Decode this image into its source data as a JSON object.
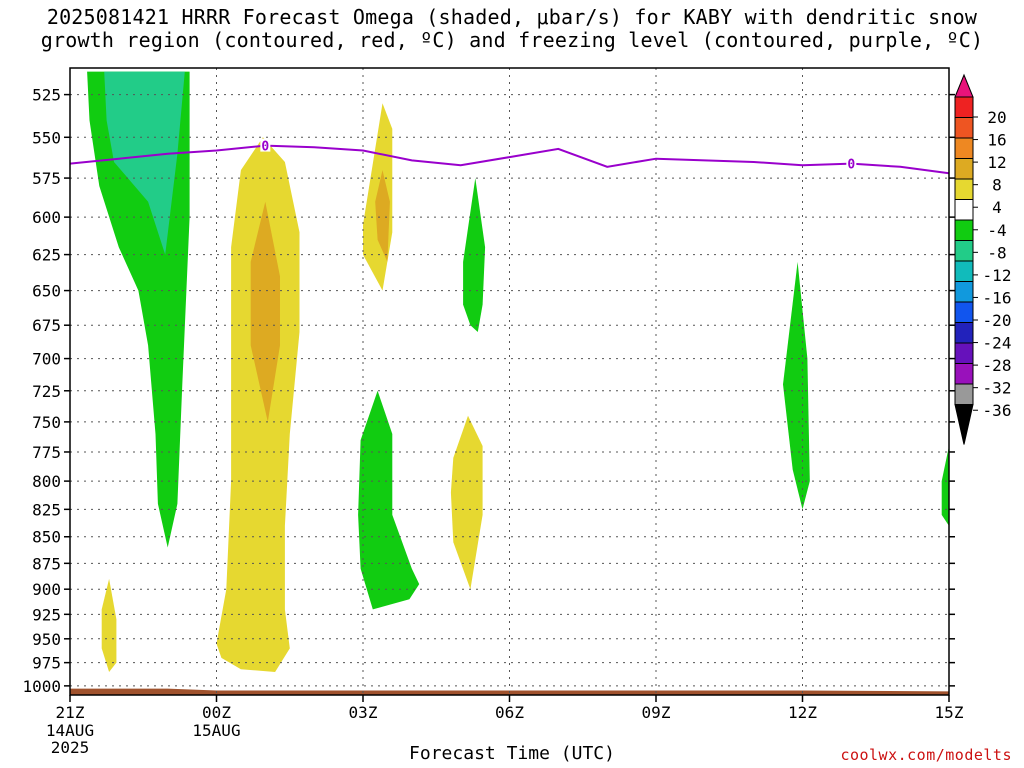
{
  "title": {
    "line1": "2025081421 HRRR Forecast Omega (shaded, μbar/s) for KABY with dendritic snow",
    "line2": "growth region (contoured, red, ºC) and freezing level (contoured, purple, ºC)"
  },
  "credit": "coolwx.com/modelts",
  "chart_data": {
    "type": "time-height",
    "xlabel": "Forecast Time (UTC)",
    "ylabel": "",
    "x_ticks": [
      {
        "label": "21Z",
        "sub": [
          "14AUG",
          "2025"
        ],
        "hour": 0
      },
      {
        "label": "00Z",
        "sub": [
          "15AUG"
        ],
        "hour": 3
      },
      {
        "label": "03Z",
        "sub": [],
        "hour": 6
      },
      {
        "label": "06Z",
        "sub": [],
        "hour": 9
      },
      {
        "label": "09Z",
        "sub": [],
        "hour": 12
      },
      {
        "label": "12Z",
        "sub": [],
        "hour": 15
      },
      {
        "label": "15Z",
        "sub": [],
        "hour": 18
      }
    ],
    "xlim_hours": [
      0,
      18
    ],
    "y_ticks": [
      525,
      550,
      575,
      600,
      625,
      650,
      675,
      700,
      725,
      750,
      775,
      800,
      825,
      850,
      875,
      900,
      925,
      950,
      975,
      1000
    ],
    "ylim_hpa": [
      1010,
      510
    ],
    "y_scale": "log-pressure",
    "grid": true,
    "colorbar": {
      "labels": [
        "20",
        "16",
        "12",
        "8",
        "4",
        "-4",
        "-8",
        "-12",
        "-16",
        "-20",
        "-24",
        "-28",
        "-32",
        "-36"
      ],
      "colors": [
        "#e8137a",
        "#ee2222",
        "#ee5522",
        "#ee8822",
        "#ddaa22",
        "#e6d830",
        "#ffffff",
        "#11cc11",
        "#22cc88",
        "#11bbbb",
        "#1199dd",
        "#1155ee",
        "#2222bb",
        "#6611bb",
        "#9911bb",
        "#999999",
        "#000000"
      ]
    },
    "freezing_level": {
      "label": "0",
      "color": "#9900cc",
      "points": [
        {
          "hour": 0.0,
          "hpa": 566
        },
        {
          "hour": 1.0,
          "hpa": 563
        },
        {
          "hour": 2.0,
          "hpa": 560
        },
        {
          "hour": 3.0,
          "hpa": 558
        },
        {
          "hour": 4.0,
          "hpa": 555
        },
        {
          "hour": 5.0,
          "hpa": 556
        },
        {
          "hour": 6.0,
          "hpa": 558
        },
        {
          "hour": 7.0,
          "hpa": 564
        },
        {
          "hour": 8.0,
          "hpa": 567
        },
        {
          "hour": 9.0,
          "hpa": 562
        },
        {
          "hour": 10.0,
          "hpa": 557
        },
        {
          "hour": 11.0,
          "hpa": 568
        },
        {
          "hour": 12.0,
          "hpa": 563
        },
        {
          "hour": 13.0,
          "hpa": 564
        },
        {
          "hour": 14.0,
          "hpa": 565
        },
        {
          "hour": 15.0,
          "hpa": 567
        },
        {
          "hour": 16.0,
          "hpa": 566
        },
        {
          "hour": 17.0,
          "hpa": 568
        },
        {
          "hour": 18.0,
          "hpa": 572
        }
      ],
      "label_hours": [
        4.0,
        16.0
      ]
    },
    "omega_regions": [
      {
        "name": "ascent-green-early",
        "value": -6,
        "color": "#11cc11",
        "points": [
          [
            0.35,
            512
          ],
          [
            2.45,
            512
          ],
          [
            2.45,
            600
          ],
          [
            2.3,
            720
          ],
          [
            2.2,
            820
          ],
          [
            2.0,
            860
          ],
          [
            1.8,
            820
          ],
          [
            1.75,
            760
          ],
          [
            1.6,
            690
          ],
          [
            1.4,
            650
          ],
          [
            1.0,
            620
          ],
          [
            0.6,
            580
          ],
          [
            0.4,
            540
          ]
        ]
      },
      {
        "name": "ascent-teal-early",
        "value": -10,
        "color": "#22cc88",
        "points": [
          [
            0.7,
            512
          ],
          [
            2.35,
            512
          ],
          [
            2.2,
            560
          ],
          [
            1.95,
            625
          ],
          [
            1.6,
            590
          ],
          [
            0.9,
            565
          ],
          [
            0.75,
            540
          ]
        ]
      },
      {
        "name": "descent-yellow-a",
        "value": 5,
        "color": "#e6d830",
        "points": [
          [
            0.65,
            920
          ],
          [
            0.8,
            890
          ],
          [
            0.95,
            930
          ],
          [
            0.95,
            975
          ],
          [
            0.8,
            985
          ],
          [
            0.65,
            960
          ]
        ]
      },
      {
        "name": "descent-yellow-b",
        "value": 5,
        "color": "#e6d830",
        "points": [
          [
            3.0,
            955
          ],
          [
            3.2,
            900
          ],
          [
            3.3,
            800
          ],
          [
            3.3,
            700
          ],
          [
            3.3,
            620
          ],
          [
            3.5,
            570
          ],
          [
            3.95,
            550
          ],
          [
            4.4,
            565
          ],
          [
            4.7,
            610
          ],
          [
            4.7,
            680
          ],
          [
            4.5,
            760
          ],
          [
            4.4,
            840
          ],
          [
            4.4,
            920
          ],
          [
            4.5,
            960
          ],
          [
            4.2,
            985
          ],
          [
            3.5,
            982
          ],
          [
            3.1,
            970
          ]
        ]
      },
      {
        "name": "descent-orange-b",
        "value": 10,
        "color": "#ddaa22",
        "points": [
          [
            3.7,
            630
          ],
          [
            4.0,
            590
          ],
          [
            4.3,
            640
          ],
          [
            4.3,
            690
          ],
          [
            4.05,
            750
          ],
          [
            3.7,
            690
          ]
        ]
      },
      {
        "name": "descent-yellow-c",
        "value": 5,
        "color": "#e6d830",
        "points": [
          [
            6.0,
            605
          ],
          [
            6.4,
            530
          ],
          [
            6.6,
            545
          ],
          [
            6.6,
            610
          ],
          [
            6.4,
            650
          ],
          [
            6.0,
            625
          ]
        ]
      },
      {
        "name": "descent-orange-c",
        "value": 9,
        "color": "#ddaa22",
        "points": [
          [
            6.25,
            590
          ],
          [
            6.4,
            570
          ],
          [
            6.55,
            590
          ],
          [
            6.5,
            630
          ],
          [
            6.3,
            615
          ]
        ]
      },
      {
        "name": "ascent-green-c",
        "value": -6,
        "color": "#11cc11",
        "points": [
          [
            5.95,
            765
          ],
          [
            6.3,
            725
          ],
          [
            6.6,
            760
          ],
          [
            6.6,
            830
          ],
          [
            7.0,
            880
          ],
          [
            7.15,
            895
          ],
          [
            6.95,
            910
          ],
          [
            6.2,
            920
          ],
          [
            5.95,
            880
          ],
          [
            5.9,
            830
          ]
        ]
      },
      {
        "name": "ascent-green-d",
        "value": -6,
        "color": "#11cc11",
        "points": [
          [
            8.05,
            630
          ],
          [
            8.3,
            575
          ],
          [
            8.5,
            620
          ],
          [
            8.45,
            660
          ],
          [
            8.35,
            680
          ],
          [
            8.2,
            675
          ],
          [
            8.05,
            660
          ]
        ]
      },
      {
        "name": "descent-yellow-d",
        "value": 5,
        "color": "#e6d830",
        "points": [
          [
            7.85,
            780
          ],
          [
            8.15,
            745
          ],
          [
            8.45,
            770
          ],
          [
            8.45,
            830
          ],
          [
            8.2,
            900
          ],
          [
            7.85,
            855
          ],
          [
            7.8,
            810
          ]
        ]
      },
      {
        "name": "ascent-green-e",
        "value": -6,
        "color": "#11cc11",
        "points": [
          [
            14.6,
            720
          ],
          [
            14.9,
            630
          ],
          [
            15.1,
            700
          ],
          [
            15.15,
            800
          ],
          [
            15.0,
            825
          ],
          [
            14.8,
            790
          ]
        ]
      },
      {
        "name": "ascent-green-f",
        "value": -6,
        "color": "#11cc11",
        "points": [
          [
            17.85,
            800
          ],
          [
            18.0,
            770
          ],
          [
            18.0,
            840
          ],
          [
            17.85,
            830
          ]
        ]
      }
    ],
    "terrain_color": "#a0522d"
  }
}
